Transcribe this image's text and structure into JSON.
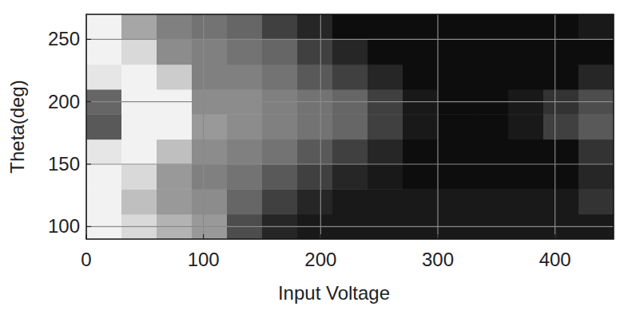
{
  "chart_data": {
    "type": "heatmap",
    "x_label": "Input Voltage",
    "y_label": "Theta(deg)",
    "x": [
      0,
      30,
      60,
      90,
      120,
      150,
      180,
      210,
      240,
      270,
      300,
      330,
      360,
      390,
      420,
      450
    ],
    "y": [
      90,
      110,
      130,
      150,
      170,
      190,
      210,
      230,
      250,
      270
    ],
    "values": [
      [
        0.05,
        0.15,
        0.3,
        0.4,
        0.7,
        0.85,
        0.9,
        0.9,
        0.9,
        0.9,
        0.9,
        0.9,
        0.9,
        0.9,
        0.9
      ],
      [
        0.05,
        0.25,
        0.4,
        0.45,
        0.6,
        0.75,
        0.85,
        0.9,
        0.9,
        0.9,
        0.9,
        0.9,
        0.9,
        0.9,
        0.8
      ],
      [
        0.05,
        0.15,
        0.4,
        0.5,
        0.55,
        0.65,
        0.75,
        0.85,
        0.9,
        0.95,
        0.95,
        0.95,
        0.95,
        0.95,
        0.85
      ],
      [
        0.1,
        0.05,
        0.25,
        0.45,
        0.5,
        0.55,
        0.65,
        0.75,
        0.85,
        0.95,
        0.95,
        0.95,
        0.95,
        0.95,
        0.8
      ],
      [
        0.65,
        0.05,
        0.05,
        0.4,
        0.45,
        0.5,
        0.55,
        0.6,
        0.75,
        0.9,
        0.95,
        0.95,
        0.9,
        0.75,
        0.65
      ],
      [
        0.6,
        0.05,
        0.05,
        0.45,
        0.45,
        0.5,
        0.55,
        0.6,
        0.75,
        0.9,
        0.95,
        0.95,
        0.9,
        0.8,
        0.7
      ],
      [
        0.1,
        0.05,
        0.2,
        0.5,
        0.5,
        0.55,
        0.65,
        0.75,
        0.85,
        0.95,
        0.95,
        0.95,
        0.95,
        0.95,
        0.85
      ],
      [
        0.05,
        0.15,
        0.45,
        0.5,
        0.55,
        0.6,
        0.75,
        0.85,
        0.95,
        0.95,
        0.95,
        0.95,
        0.95,
        0.95,
        0.95
      ],
      [
        0.05,
        0.35,
        0.5,
        0.55,
        0.6,
        0.75,
        0.85,
        0.95,
        0.95,
        0.95,
        0.95,
        0.95,
        0.95,
        0.95,
        0.9
      ]
    ],
    "zlim": [
      0,
      1
    ],
    "xlim": [
      0,
      450
    ],
    "ylim": [
      90,
      270
    ],
    "xticks": [
      0,
      100,
      200,
      300,
      400
    ],
    "yticks": [
      100,
      150,
      200,
      250
    ],
    "grid": true
  }
}
